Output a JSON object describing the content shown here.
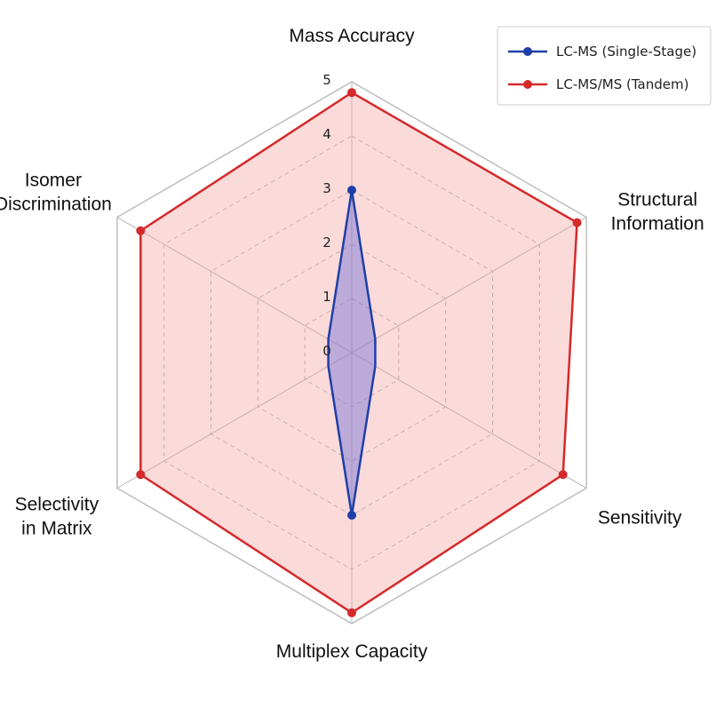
{
  "chart_data": {
    "type": "radar",
    "axes": [
      "Mass Accuracy",
      "Structural Information",
      "Sensitivity",
      "Multiplex Capacity",
      "Selectivity in Matrix",
      "Isomer Discrimination"
    ],
    "axis_label_lines": [
      [
        "Mass Accuracy"
      ],
      [
        "Structural",
        "Information"
      ],
      [
        "Sensitivity"
      ],
      [
        "Multiplex Capacity"
      ],
      [
        "Selectivity",
        "in Matrix"
      ],
      [
        "Isomer",
        "Discrimination"
      ]
    ],
    "rlim": [
      0,
      5
    ],
    "ticks": [
      "0",
      "1",
      "2",
      "3",
      "4",
      "5"
    ],
    "grid": true,
    "legend_position": "top-right",
    "series": [
      {
        "name": "LC-MS (Single-Stage)",
        "color": "#1f3fa8",
        "fill": "#6f6fd6",
        "values": [
          3,
          0.5,
          0.5,
          3,
          0.5,
          0.5
        ]
      },
      {
        "name": "LC-MS/MS (Tandem)",
        "color": "#d42a2a",
        "fill": "#f4a3a3",
        "values": [
          4.8,
          4.8,
          4.5,
          4.8,
          4.5,
          4.5
        ]
      }
    ]
  }
}
